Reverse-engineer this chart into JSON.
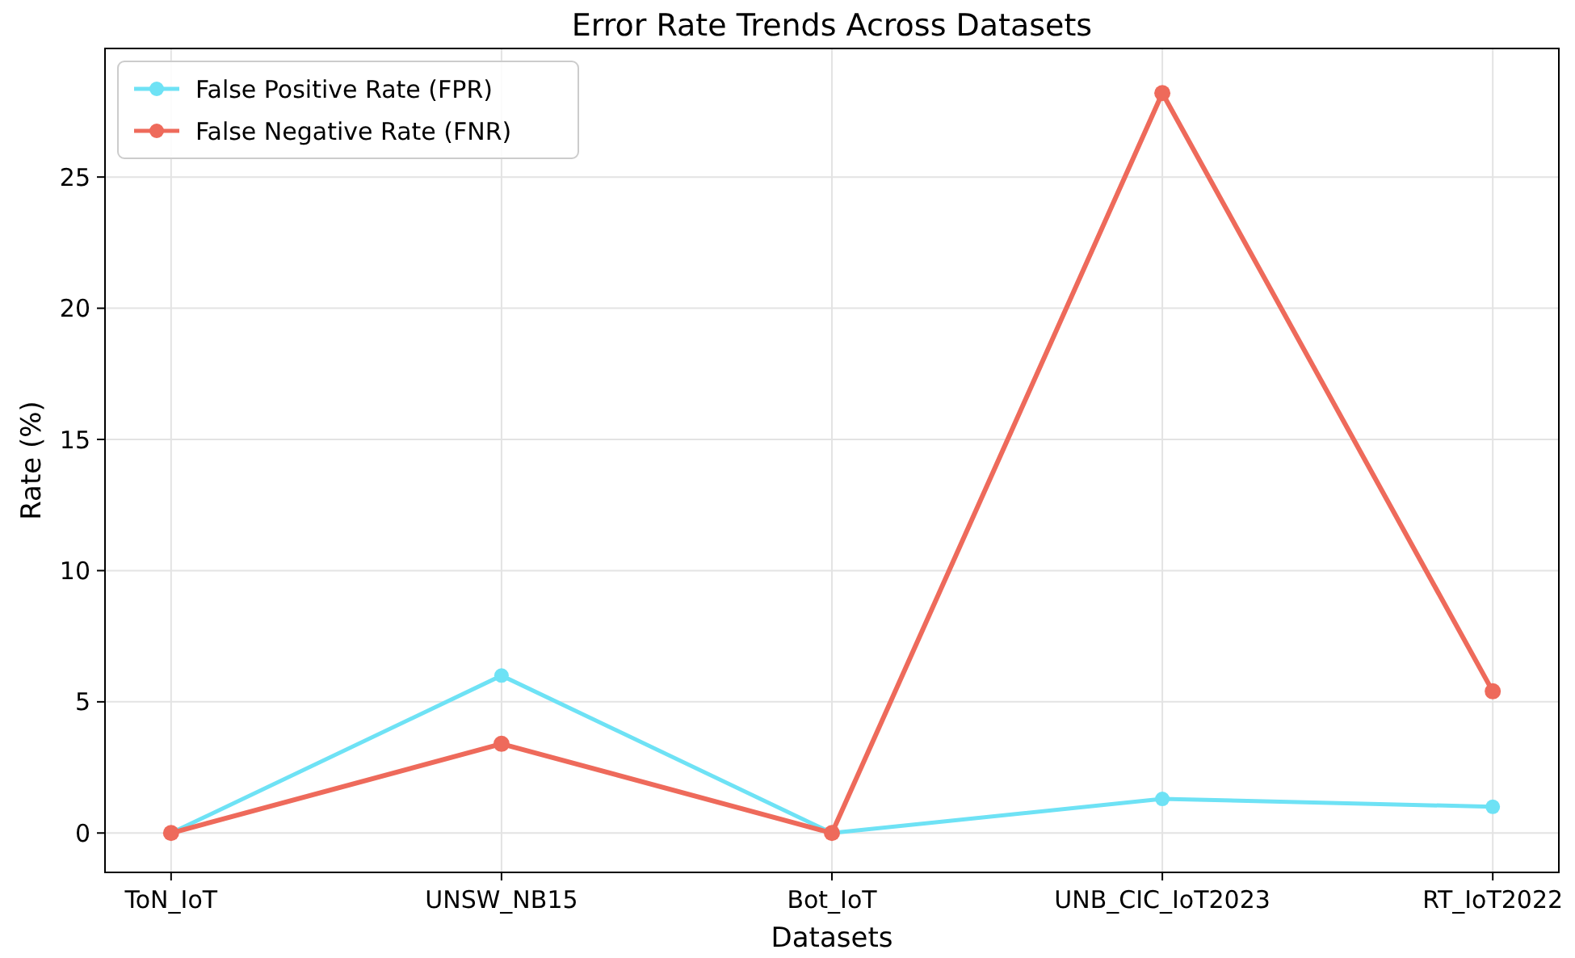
{
  "chart_data": {
    "type": "line",
    "title": "Error Rate Trends Across Datasets",
    "xlabel": "Datasets",
    "ylabel": "Rate (%)",
    "categories": [
      "ToN_IoT",
      "UNSW_NB15",
      "Bot_IoT",
      "UNB_CIC_IoT2023",
      "RT_IoT2022"
    ],
    "series": [
      {
        "name": "False Positive Rate (FPR)",
        "color": "#6ee2f5",
        "values": [
          0,
          6.0,
          0,
          1.3,
          1.0
        ]
      },
      {
        "name": "False Negative Rate (FNR)",
        "color": "#ee6a5b",
        "values": [
          0,
          3.4,
          0,
          28.2,
          5.4
        ]
      }
    ],
    "ylim": [
      -1.5,
      29.9
    ],
    "yticks": [
      0,
      5,
      10,
      15,
      20,
      25
    ],
    "grid": true,
    "legend": "top left",
    "marker": "circle",
    "line_style": "solid"
  }
}
